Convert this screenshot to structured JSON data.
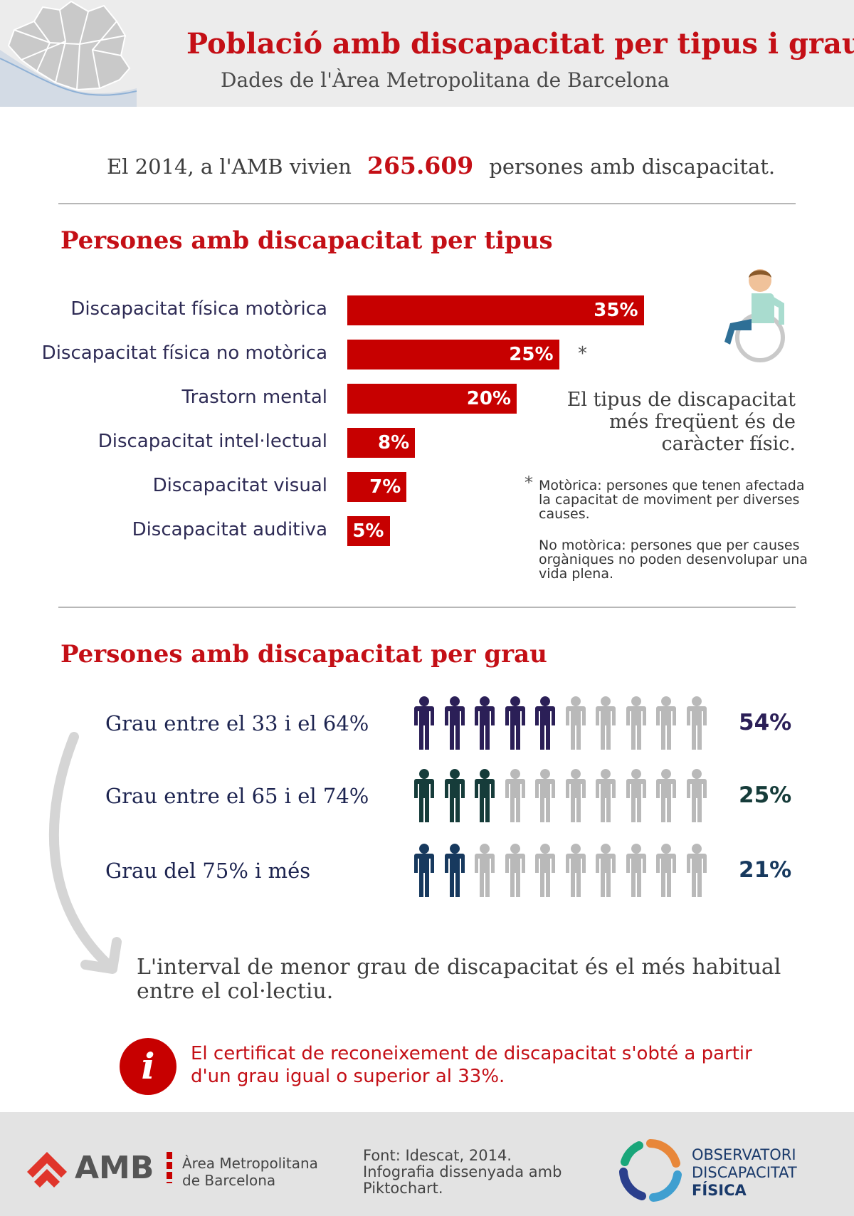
{
  "header": {
    "title": "Població amb discapacitat per tipus i grau",
    "subtitle": "Dades de l'Àrea Metropolitana de Barcelona"
  },
  "intro": {
    "before": "El 2014, a l'AMB vivien",
    "number": "265.609",
    "after": "persones amb discapacitat."
  },
  "type_section": {
    "title": "Persones amb discapacitat per tipus",
    "callout": "El tipus de discapacitat més freqüent és de caràcter físic.",
    "footnote_mark": "*",
    "note_motor": "Motòrica: persones que tenen afectada la capacitat de moviment per diverses causes.",
    "note_nonmotor": "No motòrica: persones que per causes orgàniques no poden desenvolupar una vida plena."
  },
  "grade_section": {
    "title": "Persones amb discapacitat per grau",
    "conclusion": "L'interval de menor grau de discapacitat és el més habitual entre el col·lectiu.",
    "info": "El certificat de reconeixement de discapacitat s'obté a partir d'un grau igual o superior al 33%."
  },
  "chart_data": [
    {
      "type": "bar",
      "orientation": "horizontal",
      "categories": [
        "Discapacitat física motòrica",
        "Discapacitat física no motòrica",
        "Trastorn mental",
        "Discapacitat intel·lectual",
        "Discapacitat visual",
        "Discapacitat auditiva"
      ],
      "values": [
        35,
        25,
        20,
        8,
        7,
        5
      ],
      "value_labels": [
        "35%",
        "25%",
        "20%",
        "8%",
        "7%",
        "5%"
      ],
      "title": "Persones amb discapacitat per tipus",
      "color": "#c70000"
    },
    {
      "type": "pictograph",
      "icons_per_row": 10,
      "categories": [
        "Grau entre el 33 i el 64%",
        "Grau entre el 65 i el 74%",
        "Grau del 75% i més"
      ],
      "values": [
        54,
        25,
        21
      ],
      "value_labels": [
        "54%",
        "25%",
        "21%"
      ],
      "filled_icons": [
        5,
        3,
        2
      ],
      "colors": [
        "#2b1f57",
        "#163c3a",
        "#17395e"
      ],
      "inactive_color": "#b9b9b9",
      "title": "Persones amb discapacitat per grau"
    }
  ],
  "footer": {
    "amb_logo_text": "AMB",
    "amb_line1": "Àrea Metropolitana",
    "amb_line2": "de Barcelona",
    "source": "Font: Idescat, 2014. Infografia dissenyada amb Piktochart.",
    "odf_line1": "OBSERVATORI",
    "odf_line2": "DISCAPACITAT",
    "odf_line3": "FÍSICA"
  },
  "icons": [
    "map-icon",
    "wheelchair-person-icon",
    "person-icon",
    "curved-arrow-icon",
    "info-icon",
    "amb-logo-icon",
    "odf-logo-icon"
  ]
}
